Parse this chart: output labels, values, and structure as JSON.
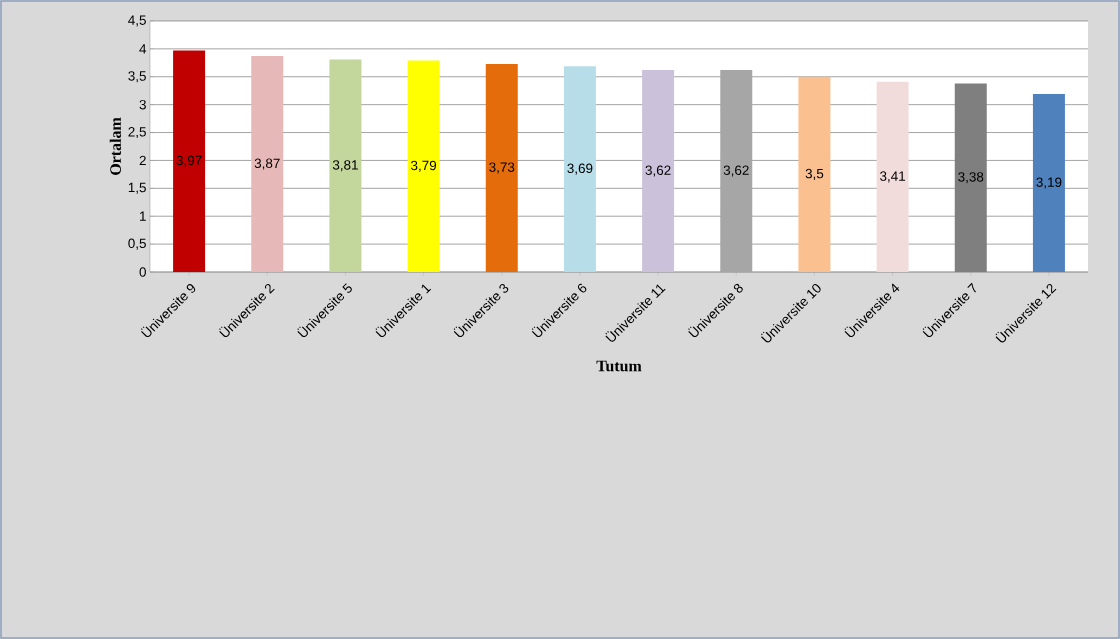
{
  "chart_data": {
    "type": "bar",
    "xlabel": "Tutum",
    "ylabel": "Ortalam",
    "categories": [
      "Üniversite 9",
      "Üniversite 2",
      "Üniversite 5",
      "Üniversite 1",
      "Üniversite 3",
      "Üniversite 6",
      "Üniversite 11",
      "Üniversite 8",
      "Üniversite 10",
      "Üniversite 4",
      "Üniversite 7",
      "Üniversite 12"
    ],
    "values": [
      3.97,
      3.87,
      3.81,
      3.79,
      3.73,
      3.69,
      3.62,
      3.62,
      3.5,
      3.41,
      3.38,
      3.19
    ],
    "value_labels": [
      "3,97",
      "3,87",
      "3,81",
      "3,79",
      "3,73",
      "3,69",
      "3,62",
      "3,62",
      "3,5",
      "3,41",
      "3,38",
      "3,19"
    ],
    "colors": [
      "#c00000",
      "#e6b9b8",
      "#c3d69b",
      "#ffff00",
      "#e46c0a",
      "#b7dde8",
      "#ccc1da",
      "#a6a6a6",
      "#fac090",
      "#f2dcdb",
      "#7f7f7f",
      "#4f81bd"
    ],
    "ylim": [
      0,
      4.5
    ],
    "yticks": [
      0,
      {
        "value": 0.5,
        "label": "0,5"
      },
      1,
      {
        "value": 1.5,
        "label": "1,5"
      },
      2,
      {
        "value": 2.5,
        "label": "2,5"
      },
      3,
      {
        "value": 3.5,
        "label": "3,5"
      },
      4,
      {
        "value": 4.5,
        "label": "4,5"
      }
    ],
    "grid": "y"
  }
}
